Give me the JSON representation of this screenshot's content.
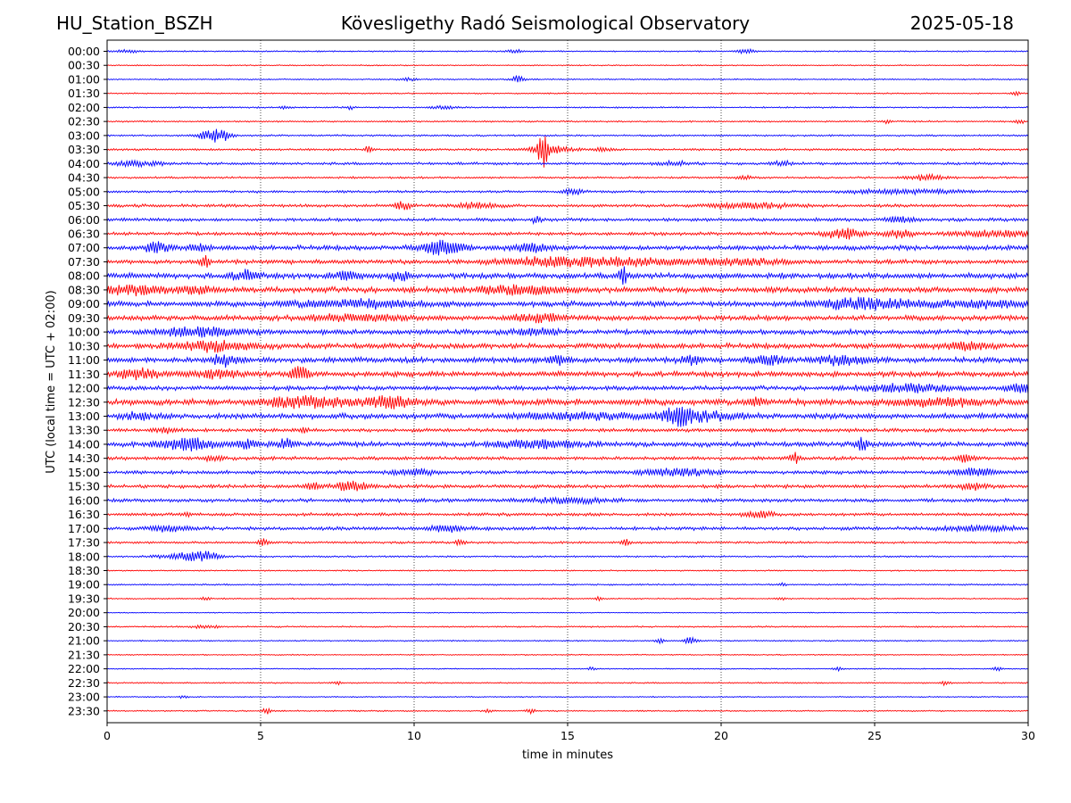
{
  "header": {
    "station": "HU_Station_BSZH",
    "observatory": "Kövesligethy Radó Seismological Observatory",
    "date": "2025-05-18"
  },
  "chart_data": {
    "type": "line",
    "title": "Kövesligethy Radó Seismological Observatory",
    "xlabel": "time in minutes",
    "ylabel": "UTC (local time = UTC + 02:00)",
    "xlim": [
      0,
      30
    ],
    "x_ticks": [
      "0",
      "5",
      "10",
      "15",
      "20",
      "25",
      "30"
    ],
    "x_tick_values": [
      0,
      5,
      10,
      15,
      20,
      25,
      30
    ],
    "grid": "vertical dotted lines every 5 minutes",
    "colors": {
      "even_rows": "#0000ff",
      "odd_rows": "#ff0000"
    },
    "rows": [
      {
        "label": "00:00",
        "base": 0.6,
        "bursts": [
          [
            0.7,
            0.3,
            1.5
          ],
          [
            20.8,
            0.2,
            2.5
          ],
          [
            13.3,
            0.2,
            1.5
          ]
        ]
      },
      {
        "label": "00:30",
        "base": 0.5,
        "bursts": []
      },
      {
        "label": "01:00",
        "base": 0.6,
        "bursts": [
          [
            13.4,
            0.15,
            4
          ],
          [
            9.8,
            0.2,
            1.5
          ]
        ]
      },
      {
        "label": "01:30",
        "base": 0.6,
        "bursts": [
          [
            29.6,
            0.1,
            2
          ]
        ]
      },
      {
        "label": "02:00",
        "base": 0.7,
        "bursts": [
          [
            5.8,
            0.1,
            2
          ],
          [
            7.9,
            0.1,
            2
          ],
          [
            10.9,
            0.3,
            1.5
          ]
        ]
      },
      {
        "label": "02:30",
        "base": 0.7,
        "bursts": [
          [
            25.4,
            0.1,
            2
          ],
          [
            29.7,
            0.1,
            3
          ]
        ]
      },
      {
        "label": "03:00",
        "base": 0.8,
        "bursts": [
          [
            3.4,
            0.35,
            5
          ],
          [
            3.7,
            0.2,
            4
          ]
        ]
      },
      {
        "label": "03:30",
        "base": 1.0,
        "bursts": [
          [
            14.2,
            0.12,
            16
          ],
          [
            14.4,
            0.5,
            4
          ],
          [
            8.5,
            0.1,
            3
          ],
          [
            16.2,
            0.2,
            2
          ]
        ]
      },
      {
        "label": "04:00",
        "base": 1.2,
        "bursts": [
          [
            1.0,
            0.6,
            2.5
          ],
          [
            22.0,
            0.2,
            2.5
          ],
          [
            18.5,
            0.4,
            2
          ]
        ]
      },
      {
        "label": "04:30",
        "base": 0.9,
        "bursts": [
          [
            26.7,
            0.4,
            3
          ],
          [
            20.8,
            0.2,
            2
          ]
        ]
      },
      {
        "label": "05:00",
        "base": 1.1,
        "bursts": [
          [
            15.2,
            0.2,
            4
          ],
          [
            26.0,
            1.5,
            2
          ]
        ]
      },
      {
        "label": "05:30",
        "base": 1.4,
        "bursts": [
          [
            9.6,
            0.2,
            4
          ],
          [
            12.0,
            0.5,
            3
          ],
          [
            21.0,
            1.0,
            2.5
          ]
        ]
      },
      {
        "label": "06:00",
        "base": 1.5,
        "bursts": [
          [
            14.0,
            0.1,
            4
          ],
          [
            25.8,
            0.3,
            3
          ]
        ]
      },
      {
        "label": "06:30",
        "base": 1.5,
        "bursts": [
          [
            24.0,
            0.4,
            6
          ],
          [
            25.8,
            0.3,
            4
          ],
          [
            29.0,
            1.0,
            3
          ]
        ]
      },
      {
        "label": "07:00",
        "base": 2.2,
        "bursts": [
          [
            1.6,
            0.3,
            5
          ],
          [
            3.0,
            0.2,
            4
          ],
          [
            10.9,
            0.5,
            7
          ],
          [
            13.8,
            0.4,
            4
          ]
        ]
      },
      {
        "label": "07:30",
        "base": 2.0,
        "bursts": [
          [
            3.2,
            0.1,
            6
          ],
          [
            16.5,
            1.5,
            4
          ],
          [
            20.5,
            1.0,
            3
          ],
          [
            14.0,
            1.0,
            3
          ]
        ]
      },
      {
        "label": "08:00",
        "base": 2.5,
        "bursts": [
          [
            4.5,
            0.3,
            5
          ],
          [
            16.8,
            0.1,
            9
          ],
          [
            7.8,
            0.3,
            4
          ],
          [
            9.5,
            0.2,
            5
          ]
        ]
      },
      {
        "label": "08:30",
        "base": 2.6,
        "bursts": [
          [
            0.8,
            1.0,
            4
          ],
          [
            13.5,
            1.0,
            3.5
          ],
          [
            3.0,
            0.3,
            3
          ]
        ]
      },
      {
        "label": "09:00",
        "base": 2.4,
        "bursts": [
          [
            24.8,
            1.2,
            5.5
          ],
          [
            8.0,
            1.5,
            3.5
          ],
          [
            28.5,
            1.0,
            3.5
          ]
        ]
      },
      {
        "label": "09:30",
        "base": 2.4,
        "bursts": [
          [
            14.0,
            0.5,
            4
          ],
          [
            8.0,
            1.0,
            3
          ]
        ]
      },
      {
        "label": "10:00",
        "base": 2.2,
        "bursts": [
          [
            3.0,
            1.0,
            4.5
          ],
          [
            14.0,
            0.5,
            3
          ]
        ]
      },
      {
        "label": "10:30",
        "base": 2.4,
        "bursts": [
          [
            3.5,
            0.8,
            5
          ],
          [
            28.0,
            0.5,
            3.5
          ]
        ]
      },
      {
        "label": "11:00",
        "base": 2.5,
        "bursts": [
          [
            3.8,
            0.3,
            6
          ],
          [
            19.0,
            0.2,
            5
          ],
          [
            21.5,
            0.4,
            4.5
          ],
          [
            24.0,
            0.6,
            4.5
          ],
          [
            14.7,
            0.3,
            4
          ]
        ]
      },
      {
        "label": "11:30",
        "base": 2.4,
        "bursts": [
          [
            6.3,
            0.2,
            8
          ],
          [
            1.0,
            0.5,
            5
          ],
          [
            3.6,
            0.6,
            4
          ]
        ]
      },
      {
        "label": "12:00",
        "base": 2.0,
        "bursts": [
          [
            29.8,
            0.3,
            6
          ],
          [
            26.0,
            1.0,
            3.5
          ]
        ]
      },
      {
        "label": "12:30",
        "base": 2.8,
        "bursts": [
          [
            9.2,
            0.5,
            7
          ],
          [
            6.5,
            1.0,
            5
          ],
          [
            27.0,
            0.8,
            4
          ],
          [
            21.2,
            0.2,
            5
          ]
        ]
      },
      {
        "label": "13:00",
        "base": 2.5,
        "bursts": [
          [
            18.6,
            0.3,
            9
          ],
          [
            19.5,
            0.8,
            4
          ],
          [
            1.0,
            0.3,
            3.5
          ],
          [
            15.5,
            1.5,
            3
          ]
        ]
      },
      {
        "label": "13:30",
        "base": 1.6,
        "bursts": [
          [
            6.4,
            0.1,
            4
          ],
          [
            2.0,
            0.3,
            3
          ]
        ]
      },
      {
        "label": "14:00",
        "base": 2.2,
        "bursts": [
          [
            2.6,
            0.6,
            6
          ],
          [
            5.8,
            0.2,
            5
          ],
          [
            24.6,
            0.15,
            7
          ],
          [
            14.0,
            1.0,
            4
          ],
          [
            4.6,
            0.3,
            4
          ]
        ]
      },
      {
        "label": "14:30",
        "base": 1.6,
        "bursts": [
          [
            22.4,
            0.1,
            6
          ],
          [
            28.0,
            0.2,
            4
          ],
          [
            3.5,
            0.2,
            3
          ]
        ]
      },
      {
        "label": "15:00",
        "base": 1.6,
        "bursts": [
          [
            18.5,
            0.8,
            4
          ],
          [
            28.2,
            0.5,
            4
          ],
          [
            10.0,
            0.5,
            3
          ]
        ]
      },
      {
        "label": "15:30",
        "base": 1.6,
        "bursts": [
          [
            8.0,
            0.4,
            5
          ],
          [
            6.7,
            0.2,
            3.5
          ],
          [
            28.2,
            0.3,
            3.5
          ]
        ]
      },
      {
        "label": "16:00",
        "base": 1.6,
        "bursts": [
          [
            15.0,
            1.0,
            2.5
          ]
        ]
      },
      {
        "label": "16:30",
        "base": 1.4,
        "bursts": [
          [
            21.2,
            0.3,
            4
          ],
          [
            2.6,
            0.1,
            3
          ]
        ]
      },
      {
        "label": "17:00",
        "base": 1.6,
        "bursts": [
          [
            11.0,
            0.5,
            3
          ],
          [
            28.5,
            0.8,
            3
          ],
          [
            2.0,
            0.5,
            2.5
          ]
        ]
      },
      {
        "label": "17:30",
        "base": 1.0,
        "bursts": [
          [
            5.1,
            0.1,
            4
          ],
          [
            11.5,
            0.1,
            3.5
          ],
          [
            16.9,
            0.1,
            3
          ]
        ]
      },
      {
        "label": "18:00",
        "base": 0.8,
        "bursts": [
          [
            2.6,
            0.6,
            4
          ],
          [
            3.2,
            0.3,
            3
          ]
        ]
      },
      {
        "label": "18:30",
        "base": 0.6,
        "bursts": []
      },
      {
        "label": "19:00",
        "base": 0.7,
        "bursts": [
          [
            22.0,
            0.1,
            1.5
          ]
        ]
      },
      {
        "label": "19:30",
        "base": 0.6,
        "bursts": [
          [
            3.2,
            0.1,
            2
          ],
          [
            16.0,
            0.1,
            2
          ],
          [
            22.0,
            0.1,
            1.5
          ]
        ]
      },
      {
        "label": "20:00",
        "base": 0.4,
        "bursts": []
      },
      {
        "label": "20:30",
        "base": 0.7,
        "bursts": [
          [
            3.2,
            0.3,
            2
          ]
        ]
      },
      {
        "label": "21:00",
        "base": 0.6,
        "bursts": [
          [
            18.0,
            0.1,
            3
          ],
          [
            19.0,
            0.15,
            3.5
          ]
        ]
      },
      {
        "label": "21:30",
        "base": 0.5,
        "bursts": []
      },
      {
        "label": "22:00",
        "base": 0.5,
        "bursts": [
          [
            15.8,
            0.1,
            2
          ],
          [
            23.8,
            0.1,
            2
          ],
          [
            29.0,
            0.1,
            2
          ]
        ]
      },
      {
        "label": "22:30",
        "base": 0.6,
        "bursts": [
          [
            7.5,
            0.1,
            2
          ],
          [
            27.3,
            0.1,
            2.5
          ]
        ]
      },
      {
        "label": "23:00",
        "base": 0.5,
        "bursts": [
          [
            2.5,
            0.1,
            1.5
          ]
        ]
      },
      {
        "label": "23:30",
        "base": 0.6,
        "bursts": [
          [
            5.2,
            0.1,
            4
          ],
          [
            12.4,
            0.1,
            2
          ],
          [
            13.8,
            0.1,
            2.5
          ]
        ]
      }
    ]
  }
}
